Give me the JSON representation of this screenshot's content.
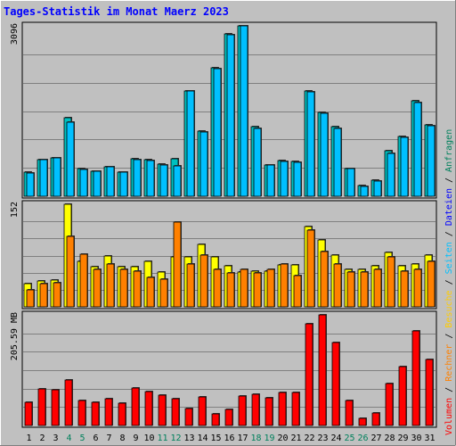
{
  "chart_data": {
    "type": "bar",
    "title": "Tages-Statistik im Monat Maerz 2023",
    "categories": [
      "1",
      "2",
      "3",
      "4",
      "5",
      "6",
      "7",
      "8",
      "9",
      "10",
      "11",
      "12",
      "13",
      "14",
      "15",
      "16",
      "17",
      "18",
      "19",
      "20",
      "21",
      "22",
      "23",
      "24",
      "25",
      "26",
      "27",
      "28",
      "29",
      "30",
      "31"
    ],
    "weekend_days": [
      4,
      5,
      11,
      12,
      18,
      19,
      25,
      26
    ],
    "panels": [
      {
        "name": "top",
        "ymax_label": "3096",
        "ymax": 3096,
        "series": [
          {
            "name": "Anfragen",
            "color": "#00c0c0",
            "values": [
              440,
              670,
              700,
              1420,
              500,
              460,
              540,
              440,
              680,
              660,
              590,
              680,
              1910,
              1180,
              2330,
              2950,
              3096,
              1260,
              570,
              650,
              630,
              1910,
              1530,
              1260,
              510,
              190,
              290,
              820,
              1090,
              1730,
              1300
            ]
          },
          {
            "name": "Dateien",
            "color": "#00c0ff",
            "values": [
              420,
              660,
              690,
              1350,
              480,
              460,
              530,
              430,
              670,
              650,
              570,
              550,
              1910,
              1160,
              2310,
              2930,
              3096,
              1230,
              560,
              630,
              620,
              1890,
              1510,
              1240,
              500,
              180,
              280,
              780,
              1070,
              1710,
              1280
            ]
          }
        ]
      },
      {
        "name": "middle",
        "ymax_label": "152",
        "ymax": 152,
        "series": [
          {
            "name": "Seiten",
            "color": "#ffff00",
            "values": [
              35,
              38,
              40,
              152,
              68,
              60,
              75,
              60,
              60,
              67,
              51,
              74,
              74,
              92,
              74,
              61,
              51,
              53,
              53,
              62,
              62,
              119,
              99,
              76,
              56,
              56,
              61,
              80,
              61,
              64,
              77
            ]
          },
          {
            "name": "Besuche",
            "color": "#ff8000",
            "values": [
              25,
              34,
              36,
              105,
              78,
              56,
              63,
              56,
              53,
              43,
              41,
              125,
              64,
              76,
              56,
              50,
              55,
              50,
              56,
              63,
              46,
              114,
              82,
              63,
              52,
              52,
              55,
              74,
              53,
              56,
              67
            ]
          }
        ]
      },
      {
        "name": "bottom",
        "ymax_label": "205.59 MB",
        "ymax": 205.59,
        "series": [
          {
            "name": "Volumen",
            "color": "#ff0000",
            "values": [
              43,
              68,
              66,
              84,
              46,
              43,
              50,
              41,
              70,
              63,
              57,
              50,
              31,
              53,
              21,
              30,
              54,
              58,
              52,
              62,
              62,
              189,
              205.59,
              155,
              46,
              14,
              23,
              78,
              109,
              175,
              122
            ]
          }
        ]
      }
    ],
    "legend_right": {
      "top_group": [
        {
          "text": "Anfragen",
          "color": "#00805c"
        },
        {
          "text": " / ",
          "color": "#000000"
        },
        {
          "text": "Dateien",
          "color": "#0000ff"
        },
        {
          "text": " / ",
          "color": "#000000"
        },
        {
          "text": "Seiten",
          "color": "#00c0ff"
        },
        {
          "text": " / ",
          "color": "#000000"
        },
        {
          "text": "Besuche",
          "color": "#ffcc00"
        },
        {
          "text": " / ",
          "color": "#000000"
        },
        {
          "text": "Rechner",
          "color": "#ff8000"
        },
        {
          "text": " / ",
          "color": "#000000"
        },
        {
          "text": "Volumen",
          "color": "#ff0000"
        }
      ]
    },
    "colors": {
      "title": "#0000ff",
      "weekday_label": "#000000",
      "weekend_label": "#00805c",
      "plot_bg": "#c0c0c0",
      "grid": "#808080"
    }
  }
}
